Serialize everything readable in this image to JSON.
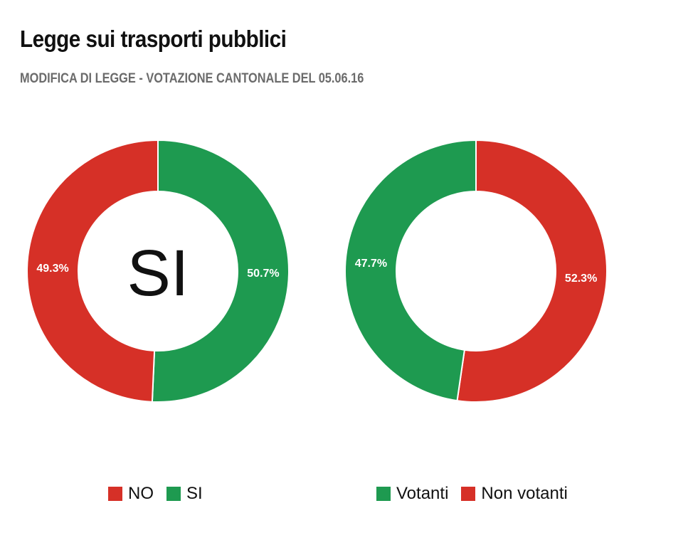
{
  "title": "Legge sui trasporti pubblici",
  "subtitle": "MODIFICA DI LEGGE - VOTAZIONE CANTONALE DEL 05.06.16",
  "colors": {
    "red": "#d63027",
    "green": "#1e9a50"
  },
  "chart_data": [
    {
      "type": "pie",
      "variant": "donut",
      "center_label": "SI",
      "slices": [
        {
          "name": "SI",
          "value": 50.7,
          "label": "50.7%",
          "color": "#1e9a50"
        },
        {
          "name": "NO",
          "value": 49.3,
          "label": "49.3%",
          "color": "#d63027"
        }
      ],
      "legend": {
        "placement": "bottom",
        "entries": [
          {
            "name": "NO",
            "color": "#d63027"
          },
          {
            "name": "SI",
            "color": "#1e9a50"
          }
        ]
      }
    },
    {
      "type": "pie",
      "variant": "donut",
      "center_label": "",
      "slices": [
        {
          "name": "Non votanti",
          "value": 52.3,
          "label": "52.3%",
          "color": "#d63027"
        },
        {
          "name": "Votanti",
          "value": 47.7,
          "label": "47.7%",
          "color": "#1e9a50"
        }
      ],
      "legend": {
        "placement": "bottom",
        "entries": [
          {
            "name": "Votanti",
            "color": "#1e9a50"
          },
          {
            "name": "Non votanti",
            "color": "#d63027"
          }
        ]
      }
    }
  ]
}
